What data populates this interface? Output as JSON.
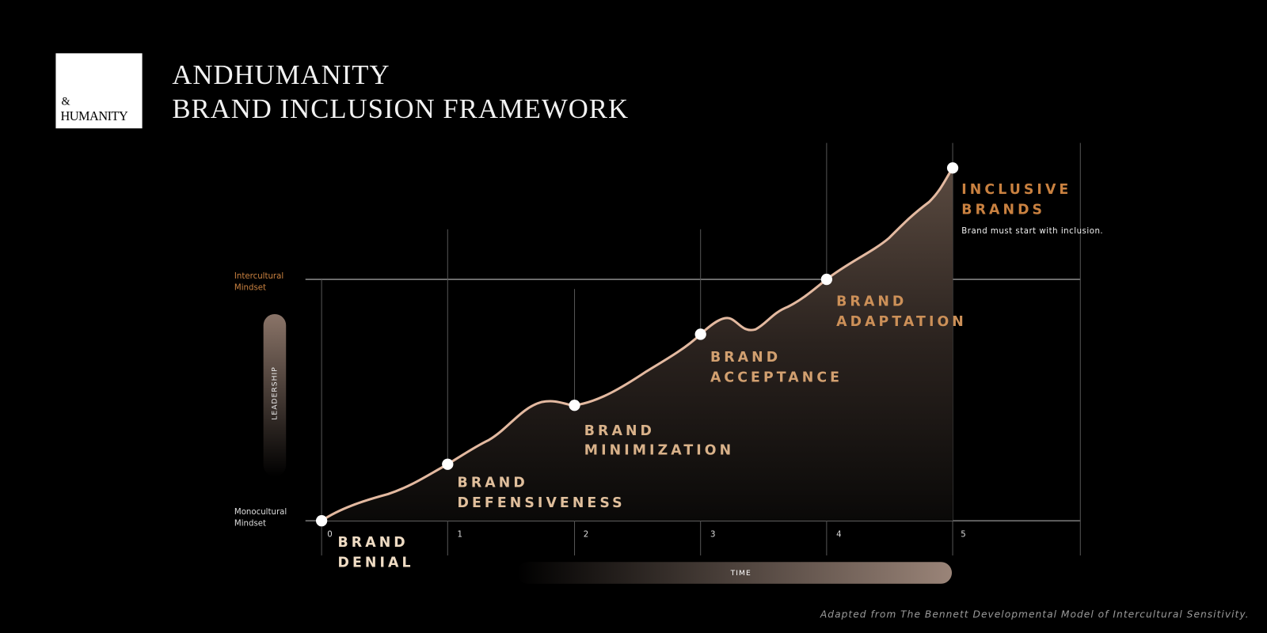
{
  "header": {
    "logo": [
      "&",
      "HUMANITY"
    ],
    "title": "ANDHUMANITY",
    "subtitle": "BRAND INCLUSION FRAMEWORK"
  },
  "axes": {
    "y_top": [
      "Intercultural",
      "Mindset"
    ],
    "y_bottom": [
      "Monocultural",
      "Mindset"
    ],
    "y_label": "LEADERSHIP",
    "x_label": "TIME"
  },
  "stages": [
    {
      "tick": "0",
      "label": [
        "BRAND",
        "DENIAL"
      ]
    },
    {
      "tick": "1",
      "label": [
        "BRAND",
        "DEFENSIVENESS"
      ]
    },
    {
      "tick": "2",
      "label": [
        "BRAND",
        "MINIMIZATION"
      ]
    },
    {
      "tick": "3",
      "label": [
        "BRAND",
        "ACCEPTANCE"
      ]
    },
    {
      "tick": "4",
      "label": [
        "BRAND",
        "ADAPTATION"
      ]
    },
    {
      "tick": "5",
      "label": [
        "INCLUSIVE",
        "BRANDS"
      ],
      "note": "Brand must start with inclusion."
    }
  ],
  "footer": "Adapted from The Bennett Developmental Model of Intercultural Sensitivity."
}
